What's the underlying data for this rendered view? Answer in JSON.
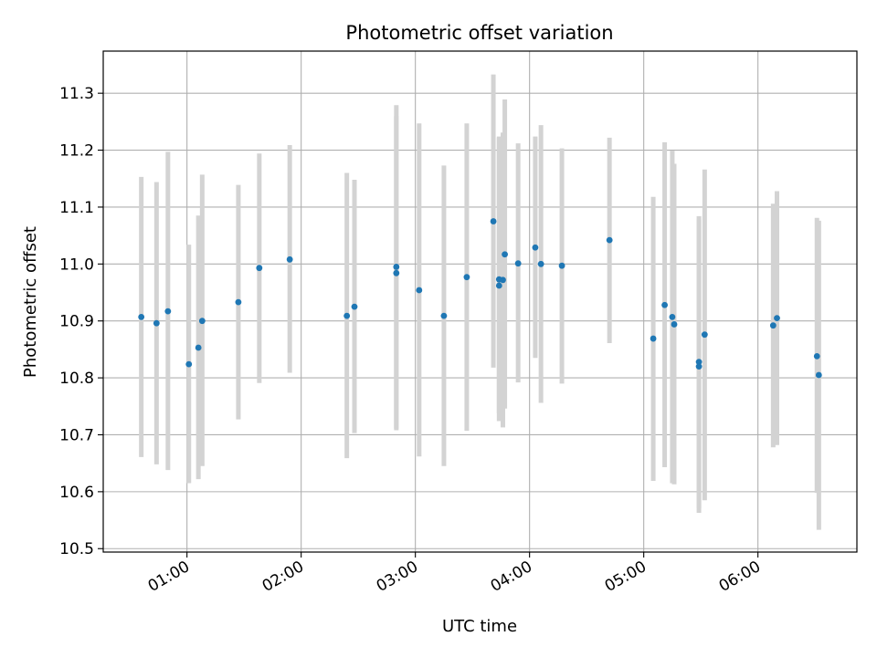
{
  "chart_data": {
    "type": "scatter",
    "title": "Photometric offset variation",
    "xlabel": "UTC time",
    "ylabel": "Photometric offset",
    "x_axis_kind": "time",
    "xlim": [
      "00:16",
      "06:52"
    ],
    "ylim": [
      10.494,
      11.374
    ],
    "xticks": [
      "01:00",
      "02:00",
      "03:00",
      "04:00",
      "05:00",
      "06:00"
    ],
    "yticks": [
      "10.5",
      "10.6",
      "10.7",
      "10.8",
      "10.9",
      "11.0",
      "11.1",
      "11.2",
      "11.3"
    ],
    "grid": true,
    "colors": {
      "points": "#1f77b4",
      "errorbars": "#d3d3d3",
      "grid": "#b0b0b0"
    },
    "points": [
      {
        "x": "00:36",
        "y": 10.907,
        "ylo": 10.661,
        "yhi": 11.153
      },
      {
        "x": "00:44",
        "y": 10.896,
        "ylo": 10.648,
        "yhi": 11.144
      },
      {
        "x": "00:50",
        "y": 10.917,
        "ylo": 10.638,
        "yhi": 11.197
      },
      {
        "x": "01:01",
        "y": 10.824,
        "ylo": 10.615,
        "yhi": 11.034
      },
      {
        "x": "01:06",
        "y": 10.853,
        "ylo": 10.622,
        "yhi": 11.085
      },
      {
        "x": "01:08",
        "y": 10.9,
        "ylo": 10.645,
        "yhi": 11.157
      },
      {
        "x": "01:27",
        "y": 10.933,
        "ylo": 10.727,
        "yhi": 11.139
      },
      {
        "x": "01:38",
        "y": 10.993,
        "ylo": 10.791,
        "yhi": 11.194
      },
      {
        "x": "01:54",
        "y": 11.008,
        "ylo": 10.809,
        "yhi": 11.209
      },
      {
        "x": "02:24",
        "y": 10.909,
        "ylo": 10.659,
        "yhi": 11.16
      },
      {
        "x": "02:28",
        "y": 10.925,
        "ylo": 10.703,
        "yhi": 11.148
      },
      {
        "x": "02:50",
        "y": 10.984,
        "ylo": 10.708,
        "yhi": 11.26
      },
      {
        "x": "02:50",
        "y": 10.995,
        "ylo": 10.711,
        "yhi": 11.279
      },
      {
        "x": "03:02",
        "y": 10.954,
        "ylo": 10.662,
        "yhi": 11.247
      },
      {
        "x": "03:15",
        "y": 10.909,
        "ylo": 10.645,
        "yhi": 11.173
      },
      {
        "x": "03:27",
        "y": 10.977,
        "ylo": 10.707,
        "yhi": 11.247
      },
      {
        "x": "03:41",
        "y": 11.075,
        "ylo": 10.818,
        "yhi": 11.333
      },
      {
        "x": "03:44",
        "y": 10.962,
        "ylo": 10.724,
        "yhi": 11.222
      },
      {
        "x": "03:44",
        "y": 10.973,
        "ylo": 10.738,
        "yhi": 11.224
      },
      {
        "x": "03:46",
        "y": 10.972,
        "ylo": 10.713,
        "yhi": 11.231
      },
      {
        "x": "03:47",
        "y": 11.017,
        "ylo": 10.746,
        "yhi": 11.289
      },
      {
        "x": "03:54",
        "y": 11.001,
        "ylo": 10.792,
        "yhi": 11.212
      },
      {
        "x": "04:03",
        "y": 11.029,
        "ylo": 10.835,
        "yhi": 11.224
      },
      {
        "x": "04:06",
        "y": 11.0,
        "ylo": 10.756,
        "yhi": 11.244
      },
      {
        "x": "04:17",
        "y": 10.997,
        "ylo": 10.79,
        "yhi": 11.203
      },
      {
        "x": "04:42",
        "y": 11.042,
        "ylo": 10.861,
        "yhi": 11.222
      },
      {
        "x": "05:05",
        "y": 10.869,
        "ylo": 10.619,
        "yhi": 11.118
      },
      {
        "x": "05:11",
        "y": 10.928,
        "ylo": 10.643,
        "yhi": 11.214
      },
      {
        "x": "05:15",
        "y": 10.907,
        "ylo": 10.615,
        "yhi": 11.199
      },
      {
        "x": "05:16",
        "y": 10.894,
        "ylo": 10.613,
        "yhi": 11.176
      },
      {
        "x": "05:29",
        "y": 10.828,
        "ylo": 10.571,
        "yhi": 11.084
      },
      {
        "x": "05:29",
        "y": 10.82,
        "ylo": 10.563,
        "yhi": 11.078
      },
      {
        "x": "05:32",
        "y": 10.876,
        "ylo": 10.585,
        "yhi": 11.166
      },
      {
        "x": "06:08",
        "y": 10.892,
        "ylo": 10.678,
        "yhi": 11.106
      },
      {
        "x": "06:10",
        "y": 10.905,
        "ylo": 10.682,
        "yhi": 11.128
      },
      {
        "x": "06:31",
        "y": 10.838,
        "ylo": 10.598,
        "yhi": 11.081
      },
      {
        "x": "06:32",
        "y": 10.805,
        "ylo": 10.533,
        "yhi": 11.076
      }
    ]
  }
}
